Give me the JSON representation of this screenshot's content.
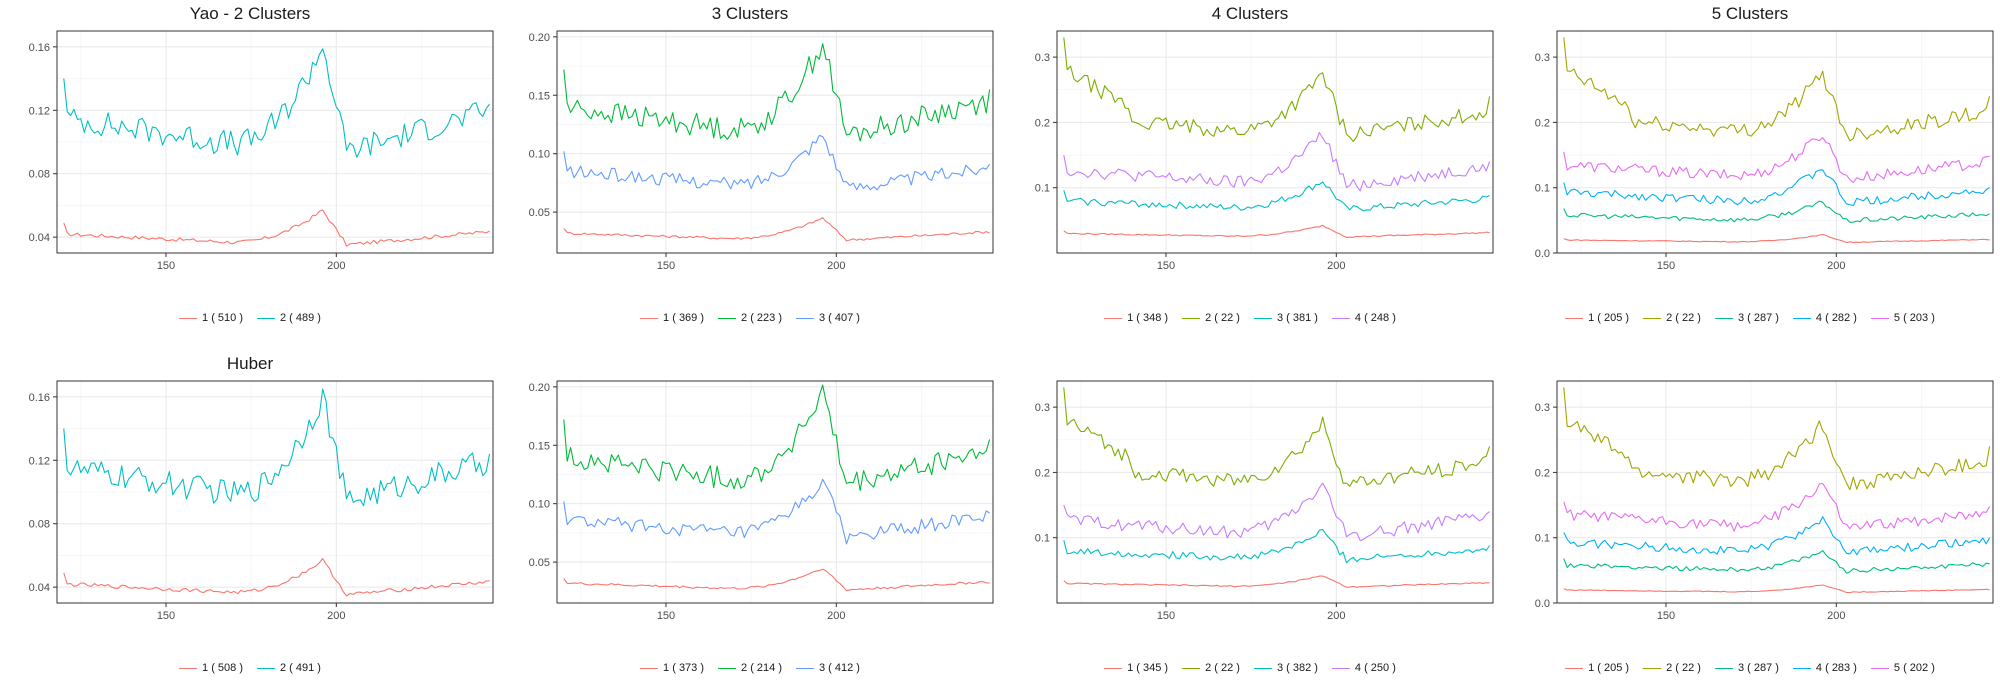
{
  "colors": {
    "two_clusters": [
      "#F8766D",
      "#00BFC4"
    ],
    "three_clusters": [
      "#F8766D",
      "#00BA38",
      "#619CFF"
    ],
    "four_clusters": [
      "#F8766D",
      "#7CAE00",
      "#00BFC4",
      "#C77CFF"
    ],
    "five_clusters": [
      "#F8766D",
      "#A3A500",
      "#00BF7D",
      "#00B0F6",
      "#E76BF3"
    ]
  },
  "chart_data": [
    {
      "type": "line",
      "row": 0,
      "col": 0,
      "title": "Yao - 2 Clusters",
      "xlim": [
        118,
        246
      ],
      "ylim": [
        0.03,
        0.17
      ],
      "xticks": [
        150,
        200
      ],
      "yticks": [
        0.04,
        0.08,
        0.12,
        0.16
      ],
      "ytick_labels": [
        "0.04",
        "0.08",
        "0.12",
        "0.16"
      ],
      "legend_position": "bottom",
      "series": [
        {
          "label": "1 ( 510 )",
          "shape": "low",
          "x": [
            120,
            245
          ],
          "values": [
            0.049,
            0.044
          ],
          "mean": 0.042,
          "peak": 0.057
        },
        {
          "label": "2 ( 489 )",
          "shape": "high",
          "x": [
            120,
            245
          ],
          "values": [
            0.14,
            0.124
          ],
          "mean": 0.115,
          "peak": 0.161
        }
      ]
    },
    {
      "type": "line",
      "row": 0,
      "col": 1,
      "title": "3 Clusters",
      "xlim": [
        118,
        246
      ],
      "ylim": [
        0.015,
        0.205
      ],
      "xticks": [
        150,
        200
      ],
      "yticks": [
        0.05,
        0.1,
        0.15,
        0.2
      ],
      "ytick_labels": [
        "0.05",
        "0.10",
        "0.15",
        "0.20"
      ],
      "legend_position": "bottom",
      "series": [
        {
          "label": "1 ( 369 )",
          "shape": "low",
          "x": [
            120,
            245
          ],
          "values": [
            0.036,
            0.032
          ],
          "mean": 0.032,
          "peak": 0.045
        },
        {
          "label": "2 ( 223 )",
          "shape": "high",
          "x": [
            120,
            245
          ],
          "values": [
            0.172,
            0.155
          ],
          "mean": 0.14,
          "peak": 0.195
        },
        {
          "label": "3 ( 407 )",
          "shape": "mid",
          "x": [
            120,
            245
          ],
          "values": [
            0.102,
            0.091
          ],
          "mean": 0.085,
          "peak": 0.117
        }
      ]
    },
    {
      "type": "line",
      "row": 0,
      "col": 2,
      "title": "4 Clusters",
      "xlim": [
        118,
        246
      ],
      "ylim": [
        0.0,
        0.34
      ],
      "xticks": [
        150,
        200
      ],
      "yticks": [
        0.1,
        0.2,
        0.3
      ],
      "ytick_labels": [
        "0.1",
        "0.2",
        "0.3"
      ],
      "legend_position": "bottom",
      "series": [
        {
          "label": "1 ( 348 )",
          "shape": "low",
          "x": [
            120,
            245
          ],
          "values": [
            0.034,
            0.031
          ],
          "mean": 0.03,
          "peak": 0.042
        },
        {
          "label": "2 ( 22 )",
          "shape": "top",
          "x": [
            120,
            245
          ],
          "values": [
            0.33,
            0.24
          ],
          "mean": 0.21,
          "peak": 0.275
        },
        {
          "label": "3 ( 381 )",
          "shape": "mid",
          "x": [
            120,
            245
          ],
          "values": [
            0.096,
            0.088
          ],
          "mean": 0.08,
          "peak": 0.11
        },
        {
          "label": "4 ( 248 )",
          "shape": "mid",
          "x": [
            120,
            245
          ],
          "values": [
            0.15,
            0.14
          ],
          "mean": 0.127,
          "peak": 0.182
        }
      ]
    },
    {
      "type": "line",
      "row": 0,
      "col": 3,
      "title": "5 Clusters",
      "xlim": [
        118,
        246
      ],
      "ylim": [
        0.0,
        0.34
      ],
      "xticks": [
        150,
        200
      ],
      "yticks": [
        0.0,
        0.1,
        0.2,
        0.3
      ],
      "ytick_labels": [
        "0.0",
        "0.1",
        "0.2",
        "0.3"
      ],
      "legend_position": "bottom",
      "series": [
        {
          "label": "1 ( 205 )",
          "shape": "low",
          "x": [
            120,
            245
          ],
          "values": [
            0.022,
            0.02
          ],
          "mean": 0.02,
          "peak": 0.028
        },
        {
          "label": "2 ( 22 )",
          "shape": "top",
          "x": [
            120,
            245
          ],
          "values": [
            0.33,
            0.24
          ],
          "mean": 0.21,
          "peak": 0.275
        },
        {
          "label": "3 ( 287 )",
          "shape": "mid",
          "x": [
            120,
            245
          ],
          "values": [
            0.068,
            0.06
          ],
          "mean": 0.058,
          "peak": 0.078
        },
        {
          "label": "4 ( 282 )",
          "shape": "mid",
          "x": [
            120,
            245
          ],
          "values": [
            0.108,
            0.1
          ],
          "mean": 0.093,
          "peak": 0.13
        },
        {
          "label": "5 ( 203 )",
          "shape": "mid",
          "x": [
            120,
            245
          ],
          "values": [
            0.155,
            0.148
          ],
          "mean": 0.135,
          "peak": 0.183
        }
      ]
    },
    {
      "type": "line",
      "row": 1,
      "col": 0,
      "title": "Huber",
      "xlim": [
        118,
        246
      ],
      "ylim": [
        0.03,
        0.17
      ],
      "xticks": [
        150,
        200
      ],
      "yticks": [
        0.04,
        0.08,
        0.12,
        0.16
      ],
      "ytick_labels": [
        "0.04",
        "0.08",
        "0.12",
        "0.16"
      ],
      "legend_position": "bottom",
      "series": [
        {
          "label": "1 ( 508 )",
          "shape": "low",
          "x": [
            120,
            245
          ],
          "values": [
            0.049,
            0.044
          ],
          "mean": 0.042,
          "peak": 0.057
        },
        {
          "label": "2 ( 491 )",
          "shape": "high",
          "x": [
            120,
            245
          ],
          "values": [
            0.14,
            0.124
          ],
          "mean": 0.115,
          "peak": 0.161
        }
      ]
    },
    {
      "type": "line",
      "row": 1,
      "col": 1,
      "title": "",
      "xlim": [
        118,
        246
      ],
      "ylim": [
        0.015,
        0.205
      ],
      "xticks": [
        150,
        200
      ],
      "yticks": [
        0.05,
        0.1,
        0.15,
        0.2
      ],
      "ytick_labels": [
        "0.05",
        "0.10",
        "0.15",
        "0.20"
      ],
      "legend_position": "bottom",
      "series": [
        {
          "label": "1 ( 373 )",
          "shape": "low",
          "x": [
            120,
            245
          ],
          "values": [
            0.036,
            0.032
          ],
          "mean": 0.032,
          "peak": 0.045
        },
        {
          "label": "2 ( 214 )",
          "shape": "high",
          "x": [
            120,
            245
          ],
          "values": [
            0.172,
            0.155
          ],
          "mean": 0.14,
          "peak": 0.195
        },
        {
          "label": "3 ( 412 )",
          "shape": "mid",
          "x": [
            120,
            245
          ],
          "values": [
            0.102,
            0.092
          ],
          "mean": 0.086,
          "peak": 0.119
        }
      ]
    },
    {
      "type": "line",
      "row": 1,
      "col": 2,
      "title": "",
      "xlim": [
        118,
        246
      ],
      "ylim": [
        0.0,
        0.34
      ],
      "xticks": [
        150,
        200
      ],
      "yticks": [
        0.1,
        0.2,
        0.3
      ],
      "ytick_labels": [
        "0.1",
        "0.2",
        "0.3"
      ],
      "legend_position": "bottom",
      "series": [
        {
          "label": "1 ( 345 )",
          "shape": "low",
          "x": [
            120,
            245
          ],
          "values": [
            0.034,
            0.031
          ],
          "mean": 0.03,
          "peak": 0.042
        },
        {
          "label": "2 ( 22 )",
          "shape": "top",
          "x": [
            120,
            245
          ],
          "values": [
            0.33,
            0.24
          ],
          "mean": 0.21,
          "peak": 0.275
        },
        {
          "label": "3 ( 382 )",
          "shape": "mid",
          "x": [
            120,
            245
          ],
          "values": [
            0.096,
            0.088
          ],
          "mean": 0.08,
          "peak": 0.11
        },
        {
          "label": "4 ( 250 )",
          "shape": "mid",
          "x": [
            120,
            245
          ],
          "values": [
            0.15,
            0.14
          ],
          "mean": 0.127,
          "peak": 0.182
        }
      ]
    },
    {
      "type": "line",
      "row": 1,
      "col": 3,
      "title": "",
      "xlim": [
        118,
        246
      ],
      "ylim": [
        0.0,
        0.34
      ],
      "xticks": [
        150,
        200
      ],
      "yticks": [
        0.0,
        0.1,
        0.2,
        0.3
      ],
      "ytick_labels": [
        "0.0",
        "0.1",
        "0.2",
        "0.3"
      ],
      "legend_position": "bottom",
      "series": [
        {
          "label": "1 ( 205 )",
          "shape": "low",
          "x": [
            120,
            245
          ],
          "values": [
            0.022,
            0.02
          ],
          "mean": 0.02,
          "peak": 0.028
        },
        {
          "label": "2 ( 22 )",
          "shape": "top",
          "x": [
            120,
            245
          ],
          "values": [
            0.33,
            0.24
          ],
          "mean": 0.21,
          "peak": 0.275
        },
        {
          "label": "3 ( 287 )",
          "shape": "mid",
          "x": [
            120,
            245
          ],
          "values": [
            0.068,
            0.06
          ],
          "mean": 0.058,
          "peak": 0.078
        },
        {
          "label": "4 ( 283 )",
          "shape": "mid",
          "x": [
            120,
            245
          ],
          "values": [
            0.108,
            0.1
          ],
          "mean": 0.093,
          "peak": 0.13
        },
        {
          "label": "5 ( 202 )",
          "shape": "mid",
          "x": [
            120,
            245
          ],
          "values": [
            0.155,
            0.148
          ],
          "mean": 0.135,
          "peak": 0.183
        }
      ]
    }
  ]
}
